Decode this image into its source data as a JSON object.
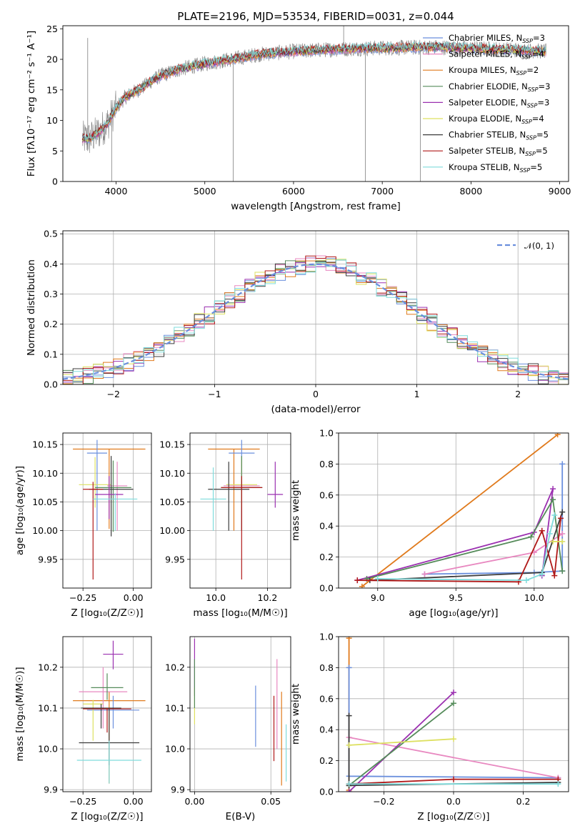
{
  "chart_data": [
    {
      "type": "line",
      "title": "PLATE=2196, MJD=53534, FIBERID=0031, z=0.044",
      "xlabel": "wavelength [Angstrom, rest frame]",
      "ylabel": "Flux [fλ10⁻¹⁷ erg cm⁻² s⁻¹ A⁻¹]",
      "xlim": [
        3400,
        9100
      ],
      "ylim": [
        0,
        25.5
      ],
      "xticks": [
        4000,
        5000,
        6000,
        7000,
        8000,
        9000
      ],
      "yticks": [
        0,
        5,
        10,
        15,
        20,
        25
      ],
      "grid": false,
      "legend_position": "top-right",
      "legend": [
        {
          "base": "Chabrier MILES, N",
          "sub": "SSP",
          "tail": "=3",
          "color": "#6a8fdd"
        },
        {
          "base": "Salpeter MILES, N",
          "sub": "SSP",
          "tail": "=4",
          "color": "#e888c0"
        },
        {
          "base": "Kroupa MILES, N",
          "sub": "SSP",
          "tail": "=2",
          "color": "#e07a1c"
        },
        {
          "base": "Chabrier ELODIE, N",
          "sub": "SSP",
          "tail": "=3",
          "color": "#558b5a"
        },
        {
          "base": "Salpeter ELODIE, N",
          "sub": "SSP",
          "tail": "=3",
          "color": "#9b30b0"
        },
        {
          "base": "Kroupa ELODIE, N",
          "sub": "SSP",
          "tail": "=4",
          "color": "#dde060"
        },
        {
          "base": "Chabrier STELIB, N",
          "sub": "SSP",
          "tail": "=5",
          "color": "#3c3c3c"
        },
        {
          "base": "Salpeter STELIB, N",
          "sub": "SSP",
          "tail": "=5",
          "color": "#b01818"
        },
        {
          "base": "Kroupa STELIB, N",
          "sub": "SSP",
          "tail": "=5",
          "color": "#7fdcdc"
        }
      ],
      "data_color": "#808080",
      "continuum": {
        "x": [
          3620,
          3700,
          3800,
          3900,
          4000,
          4100,
          4200,
          4300,
          4400,
          4500,
          4700,
          5000,
          5300,
          5600,
          6000,
          6400,
          6800,
          7200,
          7600,
          8000,
          8400,
          8850
        ],
        "y": [
          7,
          7,
          8,
          9.5,
          12,
          13.8,
          14.6,
          15.4,
          16.5,
          17.3,
          18.3,
          19.3,
          20,
          20.8,
          21.3,
          21.6,
          21.8,
          21.9,
          22,
          21.8,
          21.6,
          21.3
        ]
      },
      "spikes": [
        {
          "x": 5320,
          "y0": 0,
          "y1": 20
        },
        {
          "x": 6810,
          "y0": 0,
          "y1": 21
        },
        {
          "x": 7430,
          "y0": 0,
          "y1": 22
        },
        {
          "x": 3950,
          "y0": 0,
          "y1": 12
        },
        {
          "x": 3680,
          "y0": 5,
          "y1": 23.5
        },
        {
          "x": 6565,
          "y0": 21,
          "y1": 25.5
        }
      ]
    },
    {
      "type": "bar",
      "xlabel": "(data-model)/error",
      "ylabel": "Normed distribution",
      "xlim": [
        -2.5,
        2.5
      ],
      "ylim": [
        0,
        0.51
      ],
      "xticks": [
        -2,
        -1,
        0,
        1,
        2
      ],
      "xtick_labels": [
        "−2",
        "−1",
        "0",
        "1",
        "2"
      ],
      "yticks": [
        0,
        0.1,
        0.2,
        0.3,
        0.4,
        0.5
      ],
      "ytick_labels": [
        "0.0",
        "0.1",
        "0.2",
        "0.3",
        "0.4",
        "0.5"
      ],
      "grid": true,
      "legend_position": "top-right",
      "legend": [
        {
          "name": "𝒩(0, 1)",
          "style": "dashed",
          "color": "#6a8fdd"
        }
      ],
      "bin_width": 0.1,
      "histtype": "step"
    },
    {
      "type": "scatter",
      "xlabel": "Z [log₁₀(Z/Z☉)]",
      "ylabel": "age  [log₁₀(age/yr)]",
      "xlim": [
        -0.35,
        0.09
      ],
      "ylim": [
        9.9,
        10.17
      ],
      "xticks": [
        -0.25,
        0.0
      ],
      "xtick_labels": [
        "−0.25",
        "0.00"
      ],
      "yticks": [
        9.95,
        10.0,
        10.05,
        10.1,
        10.15
      ],
      "ytick_labels": [
        "9.95",
        "10.00",
        "10.05",
        "10.10",
        "10.15"
      ],
      "grid": true,
      "points": [
        {
          "x": -0.12,
          "xerr": 0.18,
          "y": 10.142,
          "yerr": [
            0.0,
            0.0
          ],
          "yspan": [
            10.003,
            10.142
          ],
          "color": "#e07a1c"
        },
        {
          "x": -0.18,
          "xerr": 0.05,
          "y": 10.135,
          "yspan": [
            10.0,
            10.158
          ],
          "color": "#6a8fdd"
        },
        {
          "x": -0.08,
          "xerr": 0.05,
          "y": 10.078,
          "yspan": [
            10.0,
            10.12
          ],
          "color": "#e888c0"
        },
        {
          "x": -0.19,
          "xerr": 0.08,
          "y": 10.08,
          "yspan": [
            10.04,
            10.128
          ],
          "color": "#dde060"
        },
        {
          "x": -0.1,
          "xerr": 0.09,
          "y": 10.075,
          "yspan": [
            9.998,
            10.122
          ],
          "color": "#558b5a"
        },
        {
          "x": -0.11,
          "xerr": 0.11,
          "y": 10.072,
          "yspan": [
            9.99,
            10.13
          ],
          "color": "#3c3c3c"
        },
        {
          "x": -0.12,
          "xerr": 0.07,
          "y": 10.063,
          "yspan": [
            10.02,
            10.095
          ],
          "color": "#9b30b0"
        },
        {
          "x": -0.2,
          "xerr": 0.05,
          "y": 10.072,
          "yspan": [
            9.915,
            10.085
          ],
          "color": "#b01818"
        },
        {
          "x": -0.09,
          "xerr": 0.11,
          "y": 10.055,
          "yspan": [
            10.0,
            10.065
          ],
          "color": "#7fdcdc"
        }
      ]
    },
    {
      "type": "scatter",
      "xlabel": "mass [log₁₀(M/M☉)]",
      "ylabel": "",
      "xlim": [
        9.9,
        10.29
      ],
      "ylim": [
        9.9,
        10.17
      ],
      "xticks": [
        10.0,
        10.2
      ],
      "xtick_labels": [
        "10.0",
        "10.2"
      ],
      "yticks": [
        9.95,
        10.0,
        10.05,
        10.1,
        10.15
      ],
      "ytick_labels": [
        "9.95",
        "10.00",
        "10.05",
        "10.10",
        "10.15"
      ],
      "grid": true,
      "points": [
        {
          "x": 10.07,
          "xerr": 0.1,
          "y": 10.142,
          "yspan": [
            10.0,
            10.142
          ],
          "color": "#e07a1c"
        },
        {
          "x": 10.1,
          "xerr": 0.05,
          "y": 10.135,
          "yspan": [
            10.0,
            10.158
          ],
          "color": "#6a8fdd"
        },
        {
          "x": 10.1,
          "xerr": 0.07,
          "y": 10.078,
          "yspan": [
            10.0,
            10.12
          ],
          "color": "#e888c0"
        },
        {
          "x": 10.1,
          "xerr": 0.06,
          "y": 10.08,
          "yspan": [
            10.04,
            10.128
          ],
          "color": "#dde060"
        },
        {
          "x": 10.1,
          "xerr": 0.08,
          "y": 10.075,
          "yspan": [
            10.0,
            10.13
          ],
          "color": "#558b5a"
        },
        {
          "x": 10.05,
          "xerr": 0.08,
          "y": 10.072,
          "yspan": [
            10.0,
            10.12
          ],
          "color": "#3c3c3c"
        },
        {
          "x": 10.23,
          "xerr": 0.03,
          "y": 10.063,
          "yspan": [
            10.04,
            10.12
          ],
          "color": "#9b30b0"
        },
        {
          "x": 10.1,
          "xerr": 0.08,
          "y": 10.075,
          "yspan": [
            9.915,
            10.095
          ],
          "color": "#b01818"
        },
        {
          "x": 9.99,
          "xerr": 0.05,
          "y": 10.055,
          "yspan": [
            10.0,
            10.11
          ],
          "color": "#7fdcdc"
        }
      ]
    },
    {
      "type": "line",
      "xlabel": "age  [log₁₀(age/yr)]",
      "ylabel": "mass weight",
      "xlim": [
        8.75,
        10.22
      ],
      "ylim": [
        0,
        1.0
      ],
      "xticks": [
        9.0,
        9.5,
        10.0
      ],
      "xtick_labels": [
        "9.0",
        "9.5",
        "10.0"
      ],
      "yticks": [
        0,
        0.2,
        0.4,
        0.6,
        0.8,
        1.0
      ],
      "ytick_labels": [
        "0.0",
        "0.2",
        "0.4",
        "0.6",
        "0.8",
        "1.0"
      ],
      "grid": true,
      "series": [
        {
          "color": "#e07a1c",
          "x": [
            8.9,
            10.15
          ],
          "y": [
            0.01,
            0.99
          ]
        },
        {
          "color": "#6a8fdd",
          "x": [
            9.3,
            10.0,
            10.18,
            10.18
          ],
          "y": [
            0.09,
            0.1,
            0.11,
            0.8
          ]
        },
        {
          "color": "#e888c0",
          "x": [
            9.3,
            10.0,
            10.18
          ],
          "y": [
            0.09,
            0.23,
            0.35
          ]
        },
        {
          "color": "#9b30b0",
          "x": [
            8.87,
            10.0,
            10.12,
            10.05
          ],
          "y": [
            0.05,
            0.36,
            0.64,
            0.08
          ]
        },
        {
          "color": "#558b5a",
          "x": [
            8.93,
            9.98,
            10.12,
            10.18
          ],
          "y": [
            0.06,
            0.33,
            0.57,
            0.11
          ]
        },
        {
          "color": "#3c3c3c",
          "x": [
            8.95,
            10.05,
            10.18
          ],
          "y": [
            0.05,
            0.1,
            0.49
          ]
        },
        {
          "color": "#b01818",
          "x": [
            8.87,
            9.9,
            10.05,
            10.13,
            10.17
          ],
          "y": [
            0.05,
            0.04,
            0.37,
            0.08,
            0.45
          ]
        },
        {
          "color": "#dde060",
          "x": [
            10.12,
            10.18
          ],
          "y": [
            0.3,
            0.3
          ]
        },
        {
          "color": "#7fdcdc",
          "x": [
            9.0,
            9.95,
            10.05,
            10.1,
            10.13
          ],
          "y": [
            0.06,
            0.05,
            0.09,
            0.35,
            0.47
          ]
        }
      ]
    },
    {
      "type": "scatter",
      "xlabel": "Z [log₁₀(Z/Z☉)]",
      "ylabel": "mass [log₁₀(M/M☉)]",
      "xlim": [
        -0.35,
        0.09
      ],
      "ylim": [
        9.895,
        10.275
      ],
      "xticks": [
        -0.25,
        0.0
      ],
      "xtick_labels": [
        "−0.25",
        "0.00"
      ],
      "yticks": [
        9.9,
        10.0,
        10.1,
        10.2
      ],
      "ytick_labels": [
        "9.9",
        "10.0",
        "10.1",
        "10.2"
      ],
      "grid": true,
      "points": [
        {
          "x": -0.12,
          "xerr": 0.18,
          "y": 10.118,
          "yspan": [
            9.915,
            10.14
          ],
          "color": "#e07a1c"
        },
        {
          "x": -0.1,
          "xerr": 0.13,
          "y": 10.095,
          "yspan": [
            10.05,
            10.13
          ],
          "color": "#6a8fdd"
        },
        {
          "x": -0.15,
          "xerr": 0.12,
          "y": 10.14,
          "yspan": [
            10.05,
            10.2
          ],
          "color": "#e888c0"
        },
        {
          "x": -0.2,
          "xerr": 0.05,
          "y": 10.11,
          "yspan": [
            10.02,
            10.12
          ],
          "color": "#dde060"
        },
        {
          "x": -0.13,
          "xerr": 0.08,
          "y": 10.15,
          "yspan": [
            10.12,
            10.185
          ],
          "color": "#558b5a"
        },
        {
          "x": -0.16,
          "xerr": 0.1,
          "y": 10.1,
          "yspan": [
            10.05,
            10.11
          ],
          "color": "#3c3c3c"
        },
        {
          "x": -0.1,
          "xerr": 0.05,
          "y": 10.232,
          "yspan": [
            10.195,
            10.265
          ],
          "color": "#9b30b0"
        },
        {
          "x": -0.13,
          "xerr": 0.12,
          "y": 10.098,
          "yspan": [
            10.04,
            10.1
          ],
          "color": "#b01818"
        },
        {
          "x": -0.12,
          "xerr": 0.15,
          "y": 10.015,
          "yspan": [
            9.96,
            10.1
          ],
          "color": "#3c3c3c"
        },
        {
          "x": -0.12,
          "xerr": 0.16,
          "y": 9.972,
          "yspan": [
            9.915,
            10.02
          ],
          "color": "#7fdcdc"
        }
      ]
    },
    {
      "type": "scatter",
      "xlabel": "E(B-V)",
      "ylabel": "",
      "xlim": [
        -0.003,
        0.063
      ],
      "ylim": [
        9.895,
        10.275
      ],
      "xticks": [
        0.0,
        0.05
      ],
      "xtick_labels": [
        "0.00",
        "0.05"
      ],
      "yticks": [
        9.9,
        10.0,
        10.1,
        10.2
      ],
      "ytick_labels": [
        "9.9",
        "10.0",
        "10.1",
        "10.2"
      ],
      "grid": true,
      "points": [
        {
          "x": 0.0,
          "y": 10.2,
          "yspan": [
            10.13,
            10.27
          ],
          "color": "#9b30b0"
        },
        {
          "x": 0.0,
          "y": 10.1,
          "yspan": [
            10.06,
            10.15
          ],
          "color": "#dde060"
        },
        {
          "x": 0.0,
          "y": 10.14,
          "yspan": [
            10.1,
            10.22
          ],
          "color": "#558b5a"
        },
        {
          "x": 0.04,
          "y": 10.08,
          "yspan": [
            10.005,
            10.155
          ],
          "color": "#6a8fdd"
        },
        {
          "x": 0.052,
          "y": 10.07,
          "yspan": [
            9.97,
            10.13
          ],
          "color": "#b01818"
        },
        {
          "x": 0.054,
          "y": 10.12,
          "yspan": [
            10.0,
            10.22
          ],
          "color": "#e888c0"
        },
        {
          "x": 0.057,
          "y": 10.07,
          "yspan": [
            9.91,
            10.14
          ],
          "color": "#e07a1c"
        },
        {
          "x": 0.06,
          "y": 10.0,
          "yspan": [
            9.92,
            10.06
          ],
          "color": "#7fdcdc"
        }
      ]
    },
    {
      "type": "line",
      "xlabel": "Z [log₁₀(Z/Z☉)]",
      "ylabel": "mass weight",
      "xlim": [
        -0.33,
        0.33
      ],
      "ylim": [
        0,
        1.0
      ],
      "xticks": [
        -0.2,
        0.0,
        0.2
      ],
      "xtick_labels": [
        "−0.2",
        "0.0",
        "0.2"
      ],
      "yticks": [
        0,
        0.2,
        0.4,
        0.6,
        0.8,
        1.0
      ],
      "ytick_labels": [
        "0.0",
        "0.2",
        "0.4",
        "0.6",
        "0.8",
        "1.0"
      ],
      "grid": true,
      "series": [
        {
          "color": "#e07a1c",
          "x": [
            -0.3,
            -0.3
          ],
          "y": [
            0.01,
            0.99
          ]
        },
        {
          "color": "#6a8fdd",
          "x": [
            -0.3,
            -0.3,
            0.3
          ],
          "y": [
            0.8,
            0.1,
            0.09
          ]
        },
        {
          "color": "#e888c0",
          "x": [
            -0.3,
            0.3
          ],
          "y": [
            0.35,
            0.09
          ]
        },
        {
          "color": "#9b30b0",
          "x": [
            -0.3,
            0.0
          ],
          "y": [
            0.0,
            0.64
          ]
        },
        {
          "color": "#558b5a",
          "x": [
            -0.3,
            0.0
          ],
          "y": [
            0.04,
            0.57
          ]
        },
        {
          "color": "#3c3c3c",
          "x": [
            -0.3,
            -0.3,
            0.3
          ],
          "y": [
            0.49,
            0.04,
            0.06
          ]
        },
        {
          "color": "#b01818",
          "x": [
            -0.3,
            0.0,
            0.3
          ],
          "y": [
            0.05,
            0.08,
            0.08
          ]
        },
        {
          "color": "#dde060",
          "x": [
            -0.3,
            0.0
          ],
          "y": [
            0.3,
            0.34
          ]
        },
        {
          "color": "#7fdcdc",
          "x": [
            -0.3,
            0.3
          ],
          "y": [
            0.05,
            0.05
          ]
        }
      ]
    }
  ]
}
